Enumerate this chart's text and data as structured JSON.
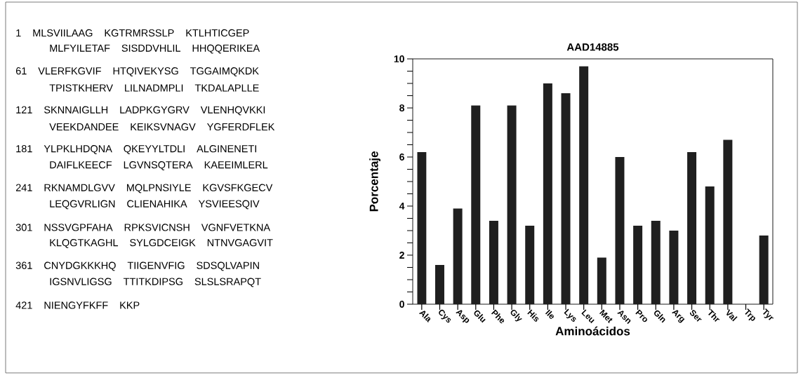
{
  "chart_data": [
    {
      "type": "other",
      "annotations": [
        "1 MLSVIILAAG KGTRMRSSLP KTLHTICGEP",
        "MLFYILETAF SISDDVHLIL HHQQERIKEA",
        "61 VLERFKGVIF HTQIVEKYSG TGGAIMQKDK",
        "TPISTKHERV LILNADMPLI TKDALAPLLE",
        "121 SKNNAIGLLH LADPKGYGRV VLENHQVKKI",
        "VEEKDANDEE KEIKSVNAGV YGFERDFLEK",
        "181 YLPKLHDQNA QKEYYLTDLI ALGINENETI",
        "DAIFLKEECF LGVNSQTERA KAEEIMLERL",
        "241 RKNAMDLGVV MQLPNSIYLE KGVSFKGECV",
        "LEQGVRLIGN CLIENAHIKA YSVIEESQIV",
        "301 NSSVGPFAHA RPKSVICNSH VGNFVETKNA",
        "KLQGTKAGHL SYLGDCEIGK NTNVGAGVIT",
        "361 CNYDGKKKHQ TIIGENVFIG SDSQLVAPIN",
        "IGSNVLIGSG TTITKDIPSG SLSLSRAPQT",
        "421 NIENGYFKFF KKP"
      ]
    },
    {
      "type": "bar",
      "title": "AAD14885",
      "xlabel": "Aminoácidos",
      "ylabel": "Porcentaje",
      "color": "#1f1f1f",
      "categories": [
        "Ala",
        "Cys",
        "Asp",
        "Glu",
        "Phe",
        "Gly",
        "His",
        "Ile",
        "Lys",
        "Leu",
        "Met",
        "Asn",
        "Pro",
        "Gln",
        "Arg",
        "Ser",
        "Thr",
        "Val",
        "Trp",
        "Tyr"
      ],
      "values": [
        6.2,
        1.6,
        3.9,
        8.1,
        3.4,
        8.1,
        3.2,
        9.0,
        8.6,
        9.7,
        1.9,
        6.0,
        3.2,
        3.4,
        3.0,
        6.2,
        4.8,
        6.7,
        0,
        2.8
      ],
      "ylim": [
        0,
        10
      ],
      "yticks": [
        0,
        {
          "value": 0.5,
          "label": null
        },
        {
          "value": 1,
          "label": null
        },
        {
          "value": 1.5,
          "label": null
        },
        2,
        {
          "value": 2.5,
          "label": null
        },
        {
          "value": 3,
          "label": null
        },
        {
          "value": 3.5,
          "label": null
        },
        4,
        {
          "value": 4.5,
          "label": null
        },
        {
          "value": 5,
          "label": null
        },
        {
          "value": 5.5,
          "label": null
        },
        6,
        {
          "value": 6.5,
          "label": null
        },
        {
          "value": 7,
          "label": null
        },
        {
          "value": 7.5,
          "label": null
        },
        8,
        {
          "value": 8.5,
          "label": null
        },
        {
          "value": 9,
          "label": null
        },
        {
          "value": 9.5,
          "label": null
        },
        10
      ],
      "grid": false
    }
  ]
}
